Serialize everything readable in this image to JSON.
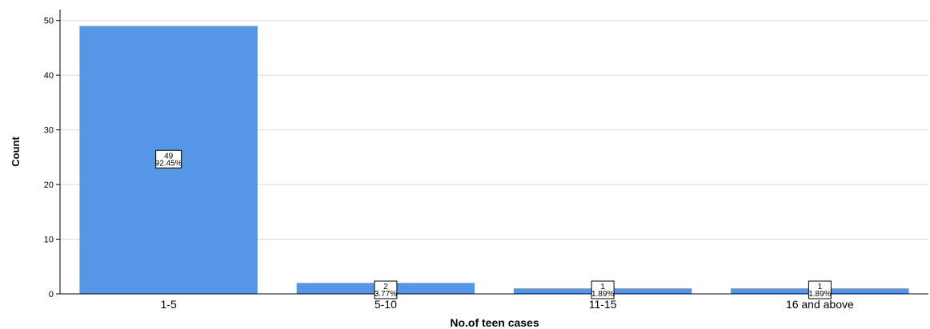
{
  "chart_data": {
    "type": "bar",
    "categories": [
      "1-5",
      "5-10",
      "11-15",
      "16 and above"
    ],
    "values": [
      49,
      2,
      1,
      1
    ],
    "percents": [
      "92.45%",
      "3.77%",
      "1.89%",
      "1.89%"
    ],
    "xlabel": "No.of teen cases",
    "ylabel": "Count",
    "ylim": [
      0,
      52
    ],
    "yticks": [
      0,
      10,
      20,
      30,
      40,
      50
    ],
    "grid": true,
    "bar_color": "#5596e6"
  }
}
